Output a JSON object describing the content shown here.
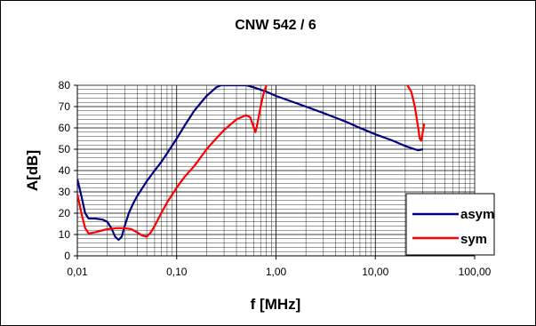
{
  "chart_data": {
    "type": "line",
    "title": "CNW 542 / 6",
    "xlabel": "f [MHz]",
    "ylabel": "A[dB]",
    "x_scale": "log",
    "xlim": [
      0.01,
      100
    ],
    "ylim": [
      0,
      80
    ],
    "x_ticks": [
      0.01,
      0.1,
      1,
      10,
      100
    ],
    "x_tick_labels": [
      "0,01",
      "0,10",
      "1,00",
      "10,00",
      "100,00"
    ],
    "y_ticks": [
      0,
      10,
      20,
      30,
      40,
      50,
      60,
      70,
      80
    ],
    "y_tick_labels": [
      "0",
      "10",
      "20",
      "30",
      "40",
      "50",
      "60",
      "70",
      "80"
    ],
    "grid": true,
    "legend_position": "bottom-right",
    "series": [
      {
        "name": "asym",
        "color": "#000080",
        "points": [
          [
            0.01,
            36
          ],
          [
            0.011,
            28
          ],
          [
            0.012,
            20
          ],
          [
            0.013,
            17.5
          ],
          [
            0.015,
            17.5
          ],
          [
            0.018,
            17
          ],
          [
            0.02,
            16
          ],
          [
            0.022,
            13
          ],
          [
            0.024,
            9
          ],
          [
            0.026,
            7.5
          ],
          [
            0.028,
            9
          ],
          [
            0.03,
            14
          ],
          [
            0.033,
            20
          ],
          [
            0.036,
            24
          ],
          [
            0.04,
            28
          ],
          [
            0.05,
            35
          ],
          [
            0.06,
            40
          ],
          [
            0.07,
            44
          ],
          [
            0.08,
            48
          ],
          [
            0.1,
            55
          ],
          [
            0.12,
            61
          ],
          [
            0.15,
            68
          ],
          [
            0.2,
            75
          ],
          [
            0.25,
            79
          ],
          [
            0.28,
            80
          ],
          [
            0.5,
            80
          ],
          [
            0.6,
            79
          ],
          [
            0.8,
            77
          ],
          [
            1,
            75
          ],
          [
            2,
            70
          ],
          [
            3,
            67
          ],
          [
            5,
            63
          ],
          [
            7,
            60
          ],
          [
            10,
            57
          ],
          [
            15,
            54
          ],
          [
            20,
            51.5
          ],
          [
            25,
            50
          ],
          [
            27,
            49.5
          ],
          [
            30,
            50
          ]
        ]
      },
      {
        "name": "sym",
        "color": "#ff0000",
        "segments": [
          [
            [
              0.01,
              29
            ],
            [
              0.011,
              20
            ],
            [
              0.012,
              13
            ],
            [
              0.013,
              10.5
            ],
            [
              0.015,
              11
            ],
            [
              0.02,
              12.5
            ],
            [
              0.025,
              13
            ],
            [
              0.03,
              13
            ],
            [
              0.035,
              12.5
            ],
            [
              0.04,
              11
            ],
            [
              0.045,
              9.5
            ],
            [
              0.05,
              9
            ],
            [
              0.055,
              11
            ],
            [
              0.06,
              14
            ],
            [
              0.07,
              20
            ],
            [
              0.08,
              25
            ],
            [
              0.1,
              32
            ],
            [
              0.12,
              37
            ],
            [
              0.15,
              42
            ],
            [
              0.2,
              50
            ],
            [
              0.25,
              55
            ],
            [
              0.3,
              59
            ],
            [
              0.4,
              64
            ],
            [
              0.5,
              66
            ],
            [
              0.55,
              65
            ],
            [
              0.6,
              60
            ],
            [
              0.62,
              58
            ],
            [
              0.65,
              62
            ],
            [
              0.7,
              70
            ],
            [
              0.75,
              76
            ],
            [
              0.8,
              80
            ]
          ],
          [
            [
              21,
              80
            ],
            [
              23,
              77
            ],
            [
              25,
              70
            ],
            [
              27,
              60
            ],
            [
              28,
              55
            ],
            [
              29,
              54
            ],
            [
              30,
              58
            ],
            [
              31,
              62
            ]
          ]
        ]
      }
    ]
  }
}
